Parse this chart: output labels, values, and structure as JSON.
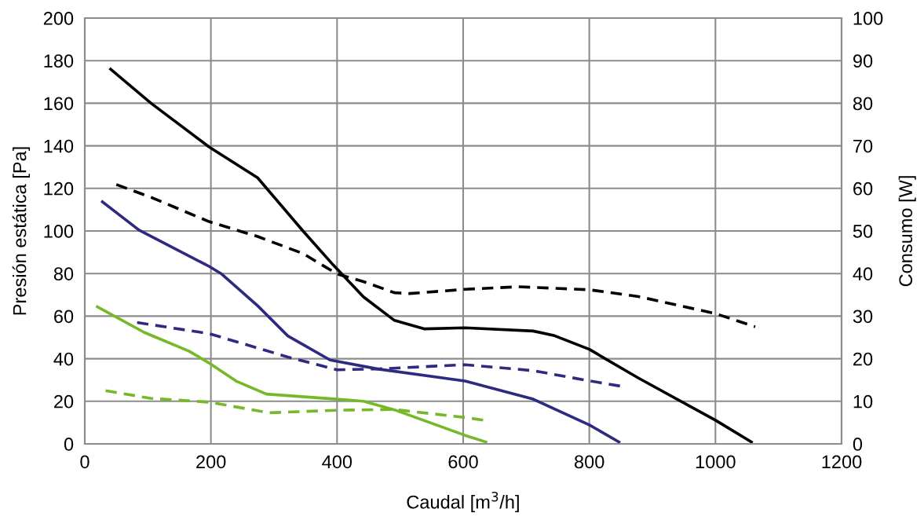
{
  "chart_data": {
    "type": "line",
    "xlabel": "Caudal [m$^{3}$/h]",
    "ylabel": "Presión estática [Pa]",
    "y2label": "Consumo [W]",
    "xlim": [
      0,
      1200
    ],
    "xticks": [
      0,
      200,
      400,
      600,
      800,
      1000,
      1200
    ],
    "ylim": [
      0,
      200
    ],
    "yticks": [
      0,
      20,
      40,
      60,
      80,
      100,
      120,
      140,
      160,
      180,
      200
    ],
    "y2lim": [
      0,
      100
    ],
    "y2ticks": [
      0,
      10,
      20,
      30,
      40,
      50,
      60,
      70,
      80,
      90,
      100
    ],
    "grid": true,
    "marker": "none",
    "series": [
      {
        "color": "#000000",
        "line_style": "solid",
        "x": [
          41,
          105,
          197,
          274,
          346,
          394,
          442,
          491,
          539,
          603,
          711,
          745,
          800,
          878,
          1000,
          1057
        ],
        "values": [
          176,
          160,
          139.5,
          125,
          100,
          84,
          69,
          58,
          54,
          54.5,
          53,
          50.8,
          44.4,
          30.9,
          11.1,
          0.9
        ]
      },
      {
        "color": "#000000",
        "line_style": "dashed",
        "axis": "y2",
        "x": [
          50,
          105,
          197,
          274,
          346,
          400,
          442,
          491,
          515,
          603,
          688,
          800,
          878,
          1000,
          1063
        ],
        "values": [
          60.9,
          57.9,
          52.2,
          48.7,
          44.7,
          39.9,
          38.1,
          35.5,
          35.3,
          36.3,
          36.9,
          36.2,
          34.6,
          30.6,
          27.5
        ]
      },
      {
        "color": "#2e2a80",
        "line_style": "solid",
        "x": [
          28,
          86,
          197,
          216,
          274,
          322,
          389,
          466,
          603,
          711,
          800,
          847
        ],
        "values": [
          113.7,
          100.4,
          83.4,
          80,
          64.9,
          50.7,
          39.4,
          35.1,
          29.5,
          21,
          8.9,
          0.9
        ]
      },
      {
        "color": "#2e2a80",
        "line_style": "dashed",
        "axis": "y2",
        "x": [
          83,
          197,
          322,
          400,
          466,
          603,
          711,
          800,
          852
        ],
        "values": [
          28.5,
          25.9,
          20.4,
          17.4,
          17.6,
          18.6,
          17.2,
          14.8,
          13.5
        ]
      },
      {
        "color": "#76b82a",
        "line_style": "solid",
        "x": [
          20,
          94,
          165,
          197,
          240,
          288,
          400,
          442,
          491,
          603,
          636
        ],
        "values": [
          64.4,
          52.4,
          43.6,
          38,
          29.5,
          23.4,
          21,
          20,
          16,
          4,
          0.9
        ]
      },
      {
        "color": "#76b82a",
        "line_style": "dashed",
        "axis": "y2",
        "x": [
          33,
          104,
          197,
          293,
          400,
          489,
          603,
          636
        ],
        "values": [
          12.5,
          10.7,
          9.8,
          7.3,
          7.9,
          8.1,
          6.2,
          5.5
        ]
      }
    ]
  }
}
